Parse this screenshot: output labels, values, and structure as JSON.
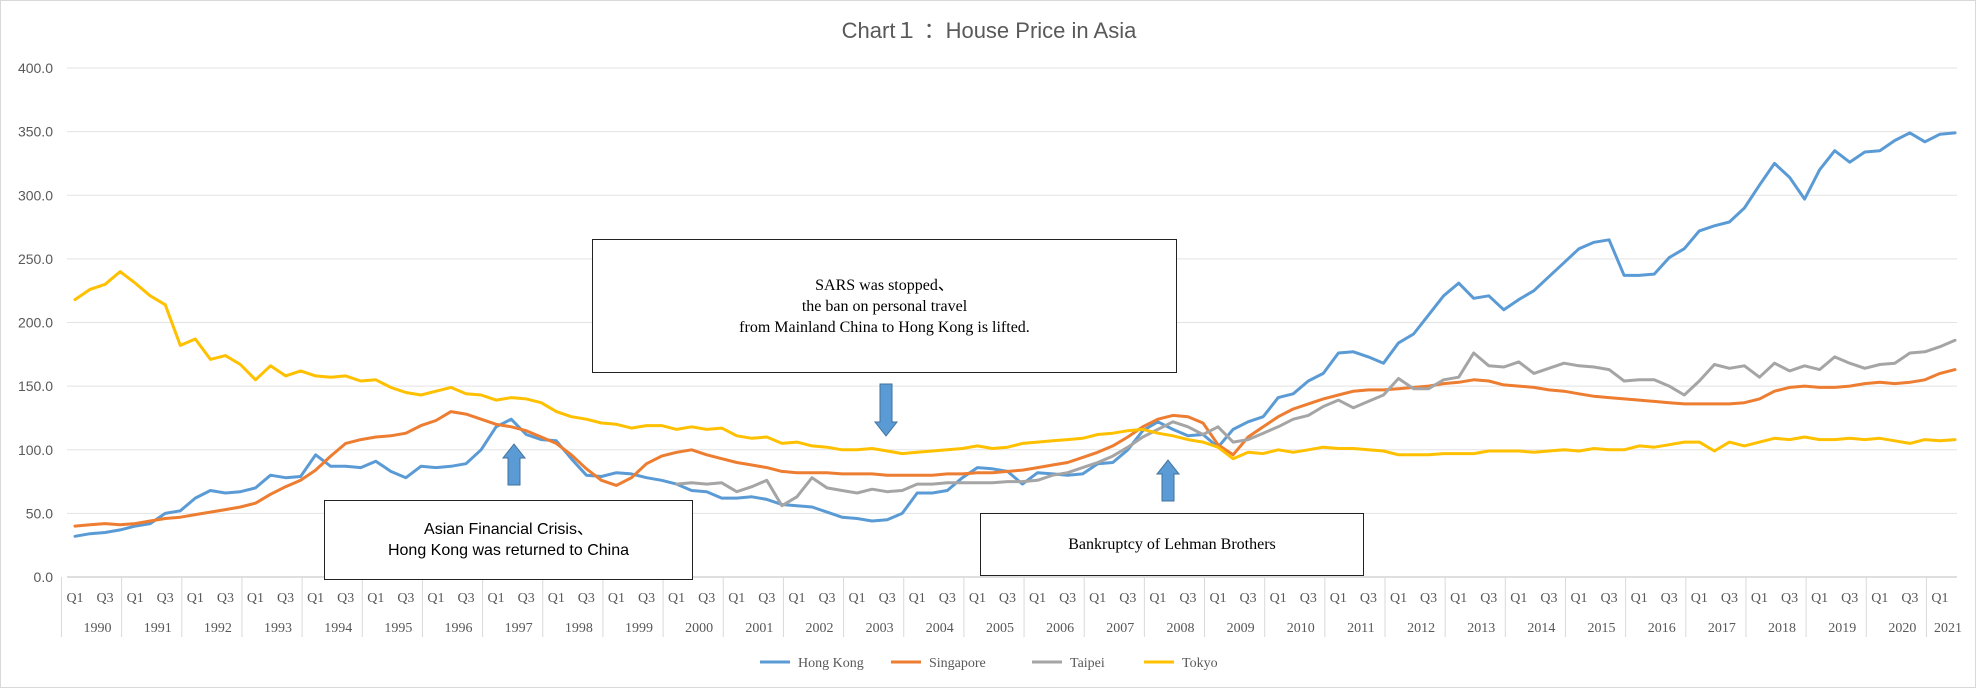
{
  "chart_data": {
    "type": "line",
    "title": "Chart１ ：House Price in Asia",
    "ylim": [
      0,
      400
    ],
    "yticks": [
      "0.0",
      "50.0",
      "100.0",
      "150.0",
      "200.0",
      "250.0",
      "300.0",
      "350.0",
      "400.0"
    ],
    "grid": "horizontal",
    "legend_position": "bottom",
    "quarter_labels": [
      "Q1",
      "Q3"
    ],
    "years": [
      "1990",
      "1991",
      "1992",
      "1993",
      "1994",
      "1995",
      "1996",
      "1997",
      "1998",
      "1999",
      "2000",
      "2001",
      "2002",
      "2003",
      "2004",
      "2005",
      "2006",
      "2007",
      "2008",
      "2009",
      "2010",
      "2011",
      "2012",
      "2013",
      "2014",
      "2015",
      "2016",
      "2017",
      "2018",
      "2019",
      "2020",
      "2021"
    ],
    "series": [
      {
        "name": "Hong Kong",
        "color": "#5b9bd5",
        "values": [
          32,
          34,
          35,
          37,
          40,
          42,
          50,
          52,
          62,
          68,
          66,
          67,
          70,
          80,
          78,
          79,
          96,
          87,
          87,
          86,
          91,
          83,
          78,
          87,
          86,
          87,
          89,
          100,
          118,
          124,
          112,
          108,
          107,
          93,
          80,
          79,
          82,
          81,
          78,
          76,
          73,
          68,
          67,
          62,
          62,
          63,
          61,
          57,
          56,
          55,
          51,
          47,
          46,
          44,
          45,
          50,
          66,
          66,
          68,
          78,
          86,
          85,
          83,
          73,
          82,
          81,
          80,
          81,
          89,
          90,
          100,
          115,
          122,
          116,
          111,
          112,
          102,
          116,
          122,
          126,
          141,
          144,
          154,
          160,
          176,
          177,
          173,
          168,
          184,
          191,
          206,
          221,
          231,
          219,
          221,
          210,
          218,
          225,
          236,
          247,
          258,
          263,
          265,
          237,
          237,
          238,
          251,
          258,
          272,
          276,
          279,
          290,
          308,
          325,
          314,
          297,
          320,
          335,
          326,
          334,
          335,
          343,
          349,
          342,
          348,
          349
        ]
      },
      {
        "name": "Singapore",
        "color": "#ed7d31",
        "values": [
          40,
          41,
          42,
          41,
          42,
          44,
          46,
          47,
          49,
          51,
          53,
          55,
          58,
          65,
          71,
          76,
          84,
          95,
          105,
          108,
          110,
          111,
          113,
          119,
          123,
          130,
          128,
          124,
          120,
          118,
          115,
          110,
          105,
          96,
          85,
          76,
          72,
          78,
          89,
          95,
          98,
          100,
          96,
          93,
          90,
          88,
          86,
          83,
          82,
          82,
          82,
          81,
          81,
          81,
          80,
          80,
          80,
          80,
          81,
          81,
          82,
          82,
          83,
          84,
          86,
          88,
          90,
          94,
          98,
          103,
          110,
          118,
          124,
          127,
          126,
          121,
          104,
          96,
          110,
          118,
          126,
          132,
          136,
          140,
          143,
          146,
          147,
          147,
          148,
          149,
          150,
          152,
          153,
          155,
          154,
          151,
          150,
          149,
          147,
          146,
          144,
          142,
          141,
          140,
          139,
          138,
          137,
          136,
          136,
          136,
          136,
          137,
          140,
          146,
          149,
          150,
          149,
          149,
          150,
          152,
          153,
          152,
          153,
          155,
          160,
          163
        ]
      },
      {
        "name": "Taipei",
        "color": "#a5a5a5",
        "values": [
          null,
          null,
          null,
          null,
          null,
          null,
          null,
          null,
          null,
          null,
          null,
          null,
          null,
          null,
          null,
          null,
          null,
          null,
          null,
          null,
          null,
          null,
          null,
          null,
          null,
          null,
          null,
          null,
          null,
          null,
          null,
          null,
          null,
          null,
          null,
          null,
          null,
          null,
          null,
          null,
          73,
          74,
          73,
          74,
          67,
          71,
          76,
          56,
          63,
          78,
          70,
          68,
          66,
          69,
          67,
          68,
          73,
          73,
          74,
          74,
          74,
          74,
          75,
          75,
          76,
          80,
          82,
          86,
          90,
          95,
          102,
          110,
          116,
          122,
          118,
          112,
          118,
          106,
          108,
          113,
          118,
          124,
          127,
          134,
          139,
          133,
          138,
          143,
          156,
          148,
          148,
          155,
          157,
          176,
          166,
          165,
          169,
          160,
          164,
          168,
          166,
          165,
          163,
          154,
          155,
          155,
          150,
          143,
          154,
          167,
          164,
          166,
          157,
          168,
          162,
          166,
          163,
          173,
          168,
          164,
          167,
          168,
          176,
          177,
          181,
          186
        ]
      },
      {
        "name": "Tokyo",
        "color": "#ffc000",
        "values": [
          218,
          226,
          230,
          240,
          231,
          221,
          214,
          182,
          187,
          171,
          174,
          167,
          155,
          166,
          158,
          162,
          158,
          157,
          158,
          154,
          155,
          149,
          145,
          143,
          146,
          149,
          144,
          143,
          139,
          141,
          140,
          137,
          130,
          126,
          124,
          121,
          120,
          117,
          119,
          119,
          116,
          118,
          116,
          117,
          111,
          109,
          110,
          105,
          106,
          103,
          102,
          100,
          100,
          101,
          99,
          97,
          98,
          99,
          100,
          101,
          103,
          101,
          102,
          105,
          106,
          107,
          108,
          109,
          112,
          113,
          115,
          116,
          113,
          111,
          108,
          106,
          102,
          93,
          98,
          97,
          100,
          98,
          100,
          102,
          101,
          101,
          100,
          99,
          96,
          96,
          96,
          97,
          97,
          97,
          99,
          99,
          99,
          98,
          99,
          100,
          99,
          101,
          100,
          100,
          103,
          102,
          104,
          106,
          106,
          99,
          106,
          103,
          106,
          109,
          108,
          110,
          108,
          108,
          109,
          108,
          109,
          107,
          105,
          108,
          107,
          108
        ]
      }
    ],
    "annotations": [
      {
        "lines": [
          "SARS was stopped、",
          "the ban on personal travel",
          "from Mainland China to Hong Kong is lifted."
        ]
      },
      {
        "lines": [
          "Asian Financial Crisis、",
          "Hong Kong was returned to China"
        ]
      },
      {
        "lines": [
          "Bankruptcy of Lehman Brothers"
        ]
      }
    ]
  }
}
